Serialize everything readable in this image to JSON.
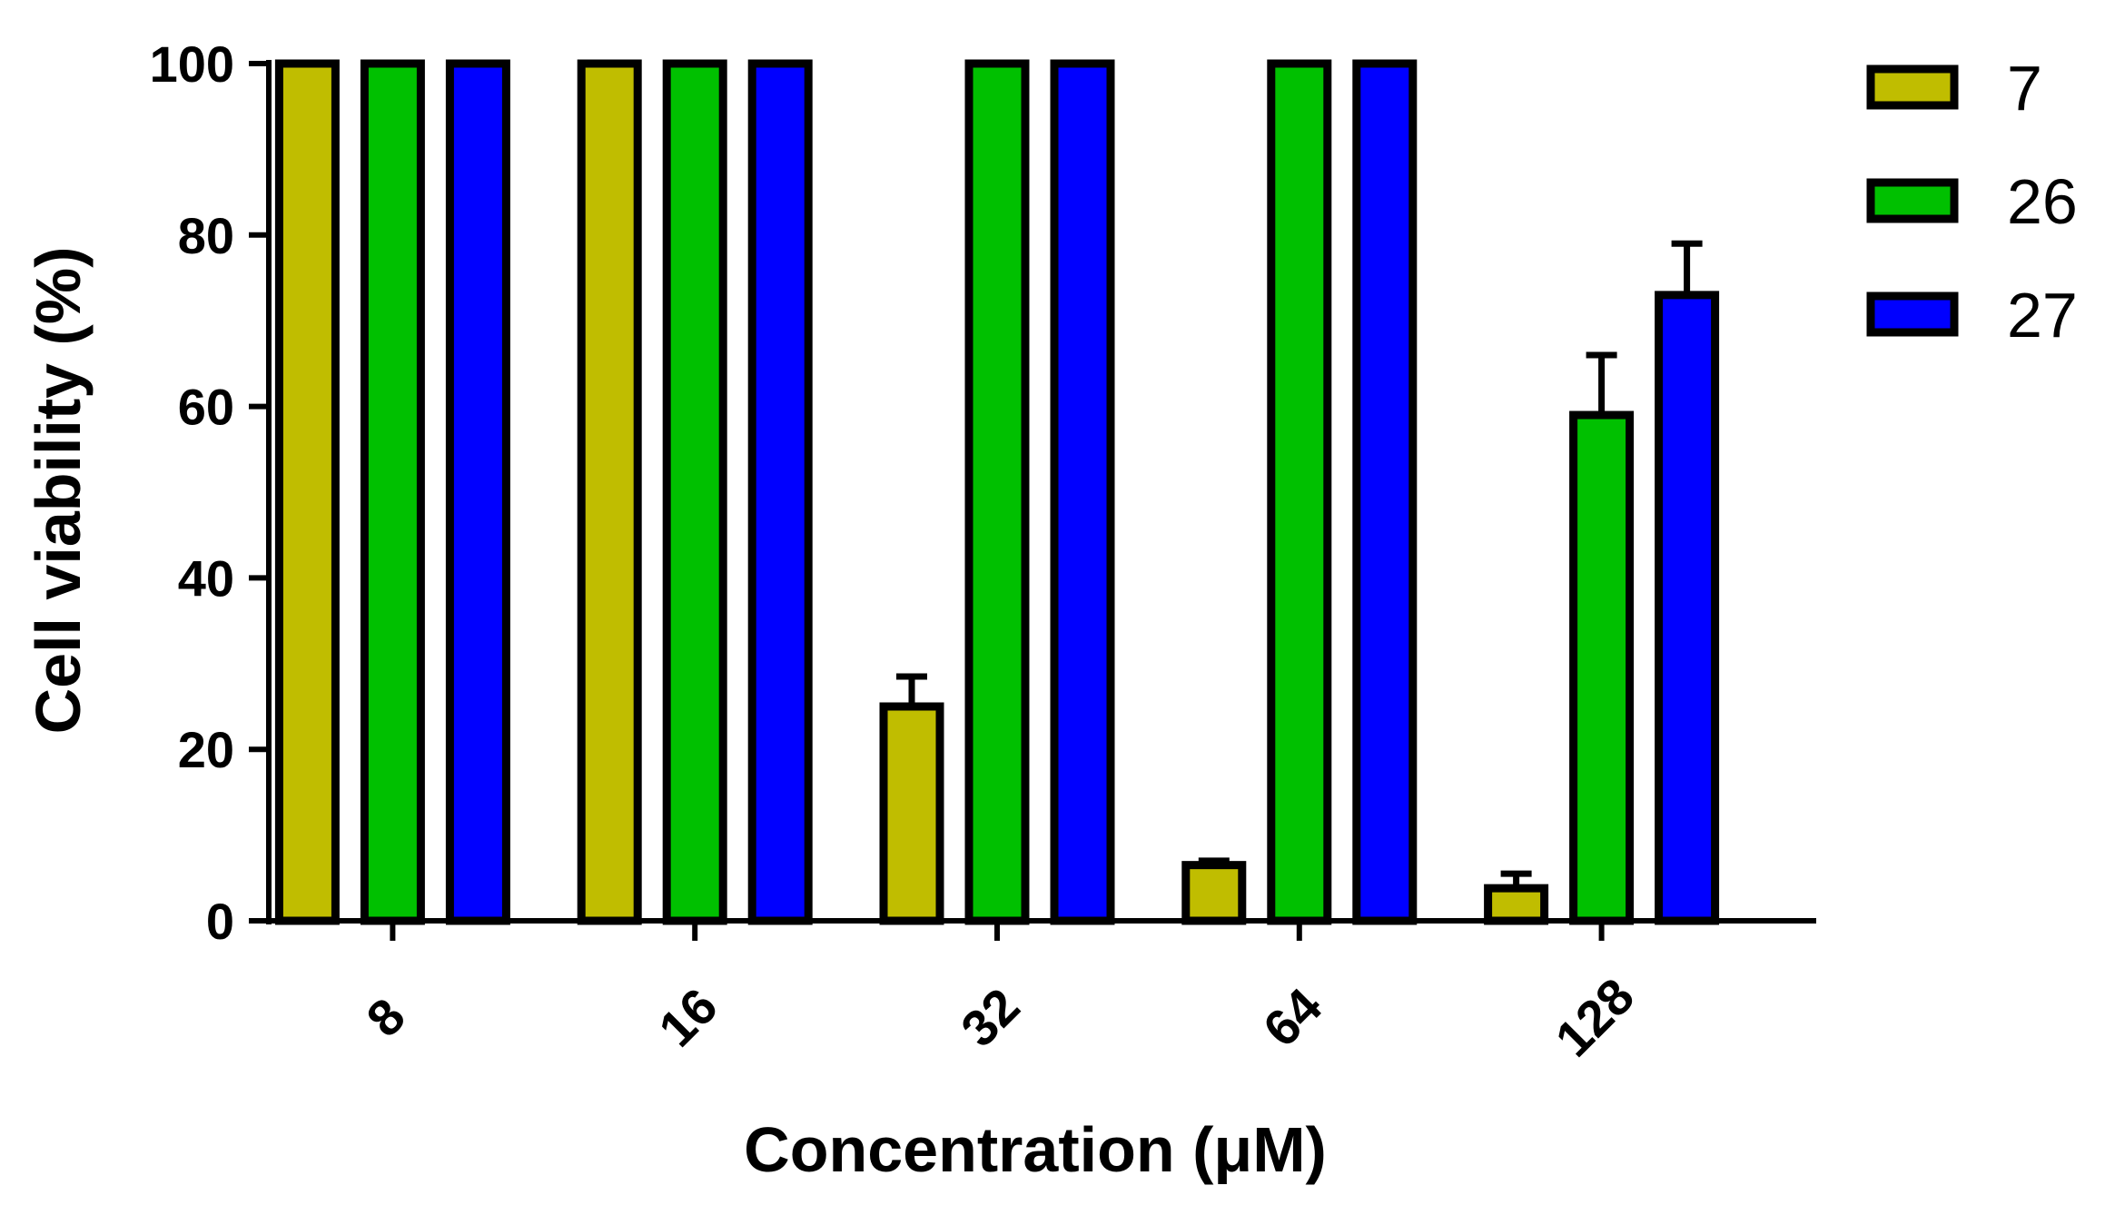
{
  "chart_data": {
    "type": "bar",
    "title": "",
    "xlabel": "Concentration (μM)",
    "ylabel": "Cell viability (%)",
    "ylim": [
      0,
      100
    ],
    "yticks": [
      0,
      20,
      40,
      60,
      80,
      100
    ],
    "categories": [
      "8",
      "16",
      "32",
      "64",
      "128"
    ],
    "series": [
      {
        "name": "7",
        "color": "#c0bd00",
        "values": [
          100,
          100,
          25,
          6.5,
          3.8
        ],
        "errors": [
          null,
          null,
          3.5,
          0.5,
          1.7
        ]
      },
      {
        "name": "26",
        "color": "#00c000",
        "values": [
          100,
          100,
          100,
          100,
          59
        ],
        "errors": [
          null,
          null,
          null,
          null,
          7
        ]
      },
      {
        "name": "27",
        "color": "#0000ff",
        "values": [
          100,
          100,
          100,
          100,
          73
        ],
        "errors": [
          null,
          null,
          null,
          null,
          6
        ]
      }
    ],
    "legend_position": "top-right",
    "grid": false,
    "bar_outline_color": "#000000"
  }
}
